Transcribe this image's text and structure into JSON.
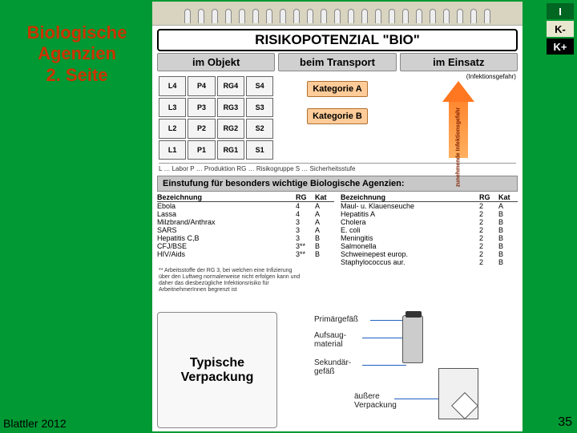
{
  "sidebar": {
    "title_l1": "Biologische",
    "title_l2": "Agenzien",
    "title_l3": "2. Seite"
  },
  "nav": {
    "i": "I",
    "k_minus": "K-",
    "k_plus": "K+"
  },
  "footer": {
    "left": "Blattler 2012",
    "page": "35"
  },
  "colors": {
    "bg": "#009933",
    "accent": "#cc3300",
    "kat": "#ffcc99",
    "arrow": "#ff8830"
  },
  "card": {
    "title": "RISIKOPOTENZIAL \"BIO\"",
    "columns": [
      "im Objekt",
      "beim Transport",
      "im Einsatz"
    ],
    "einsatz_note": "(Infektionsgefahr)",
    "matrix": [
      [
        "L4",
        "P4",
        "RG4",
        "S4"
      ],
      [
        "L3",
        "P3",
        "RG3",
        "S3"
      ],
      [
        "L2",
        "P2",
        "RG2",
        "S2"
      ],
      [
        "L1",
        "P1",
        "RG1",
        "S1"
      ]
    ],
    "kategorien": [
      "Kategorie A",
      "Kategorie B"
    ],
    "arrow_label": "zunehmende Infektionsgefahr",
    "legend": "L … Labor   P … Produktion   RG … Risikogruppe   S … Sicherheitsstufe",
    "einstufung_title": "Einstufung für besonders wichtige Biologische Agenzien:",
    "agent_headers": [
      "Bezeichnung",
      "RG",
      "Kat"
    ],
    "agents_left": [
      [
        "Ebola",
        "4",
        "A"
      ],
      [
        "Lassa",
        "4",
        "A"
      ],
      [
        "Milzbrand/Anthrax",
        "3",
        "A"
      ],
      [
        "SARS",
        "3",
        "A"
      ],
      [
        "Hepatitis C,B",
        "3",
        "B"
      ],
      [
        "CFJ/BSE",
        "3**",
        "B"
      ],
      [
        "HIV/Aids",
        "3**",
        "B"
      ]
    ],
    "agents_right": [
      [
        "Maul- u. Klauenseuche",
        "2",
        "A"
      ],
      [
        "Hepatitis A",
        "2",
        "B"
      ],
      [
        "Cholera",
        "2",
        "B"
      ],
      [
        "E. coli",
        "2",
        "B"
      ],
      [
        "Meningitis",
        "2",
        "B"
      ],
      [
        "Salmonella",
        "2",
        "B"
      ],
      [
        "Schweinepest europ.",
        "2",
        "B"
      ],
      [
        "Staphylococcus aur.",
        "2",
        "B"
      ]
    ],
    "footnote": "** Arbeitsstoffe der RG 3, bei welchen eine Infizierung über den Luftweg normalerweise nicht erfolgen kann und daher das diesbezügliche Infektionsrisiko für ArbeitnehmerInnen begrenzt ist",
    "packaging": {
      "title": "Typische Verpackung",
      "labels": {
        "primary": "Primärgefäß",
        "absorb": "Aufsaug-\nmaterial",
        "secondary": "Sekundär-\ngefäß",
        "outer": "äußere\nVerpackung"
      }
    }
  }
}
